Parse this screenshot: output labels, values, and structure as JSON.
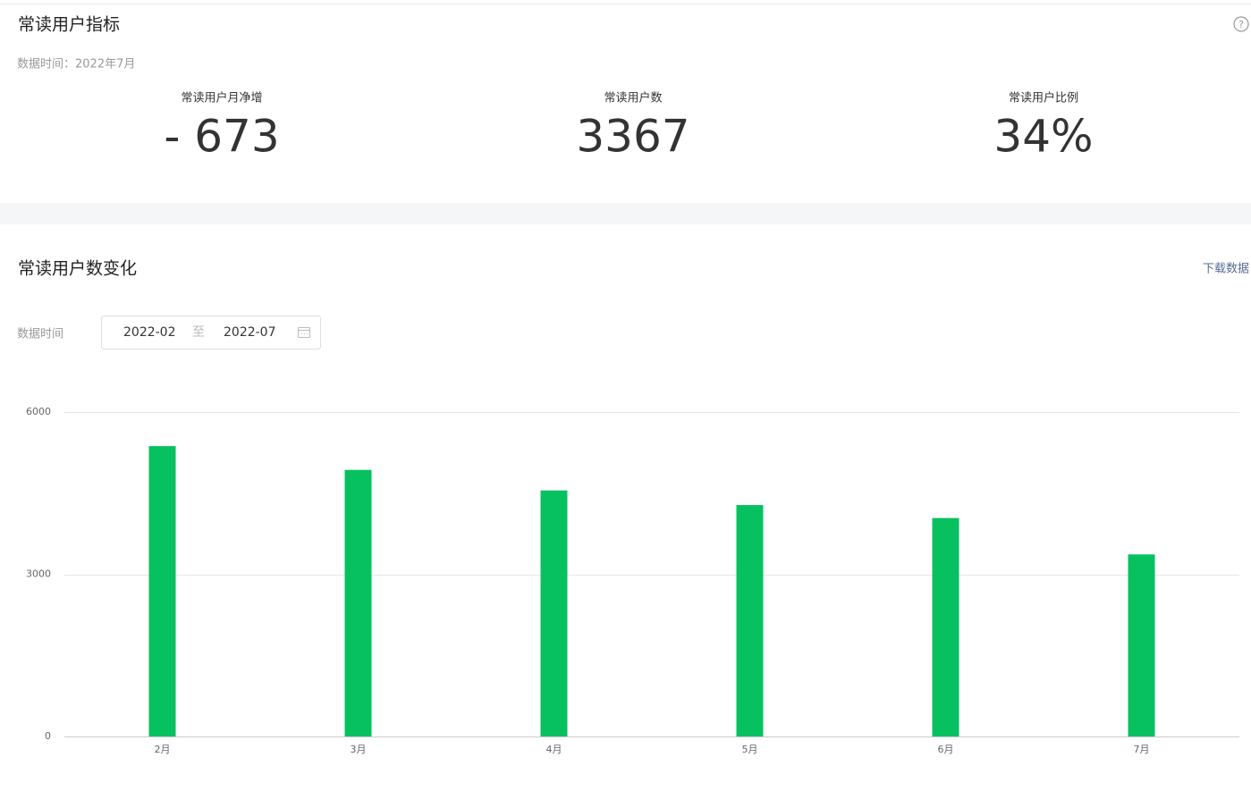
{
  "header": {
    "title": "常读用户指标",
    "help_icon": "?",
    "data_time": "数据时间：2022年7月"
  },
  "metrics": [
    {
      "label": "常读用户月净增",
      "value": "- 673"
    },
    {
      "label": "常读用户数",
      "value": "3367"
    },
    {
      "label": "常读用户比例",
      "value": "34%"
    }
  ],
  "trend": {
    "title": "常读用户数变化",
    "download": "下载数据",
    "date_label": "数据时间",
    "start": "2022-02",
    "separator": "至",
    "end": "2022-07"
  },
  "chart_data": {
    "type": "bar",
    "categories": [
      "2月",
      "3月",
      "4月",
      "5月",
      "6月",
      "7月"
    ],
    "values": [
      5370,
      4930,
      4550,
      4280,
      4040,
      3367
    ],
    "color": "#07c160",
    "ylim": [
      0,
      6000
    ],
    "yticks": [
      0,
      3000,
      6000
    ],
    "grid": true
  }
}
